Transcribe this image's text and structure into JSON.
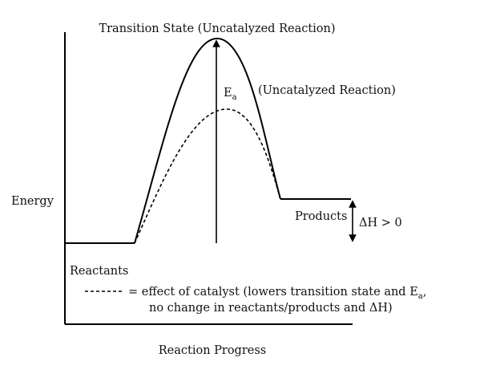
{
  "diagram": {
    "title_top": "Transition State (Uncatalyzed Reaction)",
    "y_axis_label": "Energy",
    "x_axis_label": "Reaction Progress",
    "activation_energy_label": "E",
    "activation_energy_subscript": "a",
    "uncatalyzed_curve_label": "(Uncatalyzed Reaction)",
    "reactants_label": "Reactants",
    "products_label": "Products",
    "enthalpy_label": "ΔH > 0",
    "legend": {
      "line1_prefix": "= effect of catalyst (lowers transition state and E",
      "line1_subscript": "a",
      "line1_suffix": ",",
      "line2": "no change in reactants/products and ΔH)"
    },
    "colors": {
      "line": "#000000",
      "background": "#ffffff"
    }
  }
}
